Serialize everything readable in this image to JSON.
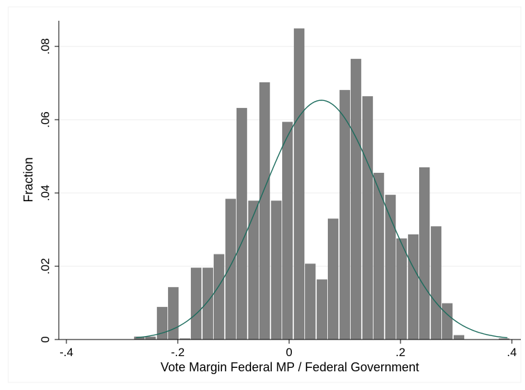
{
  "chart_data": {
    "type": "bar",
    "xlabel": "Vote Margin Federal MP / Federal Government",
    "ylabel": "Fraction",
    "xlim": [
      -0.4,
      0.4
    ],
    "ylim": [
      0,
      0.087
    ],
    "x_ticks": [
      {
        "value": -0.4,
        "label": "-.4"
      },
      {
        "value": -0.2,
        "label": "-.2"
      },
      {
        "value": 0,
        "label": "0"
      },
      {
        "value": 0.2,
        "label": ".2"
      },
      {
        "value": 0.4,
        "label": ".4"
      }
    ],
    "y_ticks": [
      {
        "value": 0,
        "label": "0"
      },
      {
        "value": 0.02,
        "label": ".02"
      },
      {
        "value": 0.04,
        "label": ".04"
      },
      {
        "value": 0.06,
        "label": ".06"
      },
      {
        "value": 0.08,
        "label": ".08"
      }
    ],
    "grid": true,
    "bin_width": 0.0205,
    "bins": [
      {
        "x": -0.269,
        "y": 0.0008
      },
      {
        "x": -0.249,
        "y": 0.0008
      },
      {
        "x": -0.228,
        "y": 0.0089
      },
      {
        "x": -0.208,
        "y": 0.0143
      },
      {
        "x": -0.187,
        "y": 0.0003
      },
      {
        "x": -0.167,
        "y": 0.0196
      },
      {
        "x": -0.146,
        "y": 0.0196
      },
      {
        "x": -0.126,
        "y": 0.0233
      },
      {
        "x": -0.105,
        "y": 0.0384
      },
      {
        "x": -0.085,
        "y": 0.0632
      },
      {
        "x": -0.064,
        "y": 0.0379
      },
      {
        "x": -0.044,
        "y": 0.0702
      },
      {
        "x": -0.023,
        "y": 0.0379
      },
      {
        "x": -0.003,
        "y": 0.0594
      },
      {
        "x": 0.018,
        "y": 0.0849
      },
      {
        "x": 0.038,
        "y": 0.0207
      },
      {
        "x": 0.059,
        "y": 0.0164
      },
      {
        "x": 0.079,
        "y": 0.033
      },
      {
        "x": 0.1,
        "y": 0.0681
      },
      {
        "x": 0.12,
        "y": 0.0766
      },
      {
        "x": 0.141,
        "y": 0.0664
      },
      {
        "x": 0.161,
        "y": 0.0455
      },
      {
        "x": 0.182,
        "y": 0.0395
      },
      {
        "x": 0.202,
        "y": 0.0276
      },
      {
        "x": 0.223,
        "y": 0.0287
      },
      {
        "x": 0.243,
        "y": 0.047
      },
      {
        "x": 0.264,
        "y": 0.0309
      },
      {
        "x": 0.284,
        "y": 0.0099
      },
      {
        "x": 0.305,
        "y": 0.0012
      },
      {
        "x": 0.386,
        "y": 0.0003
      }
    ],
    "normal_curve": {
      "mean": 0.058,
      "sd": 0.1065,
      "x_range": [
        -0.275,
        0.392
      ],
      "peak": 0.0653
    },
    "colors": {
      "bars": "#808080",
      "curve": "#1a6b5c",
      "grid": "#ececec",
      "axis": "#000000"
    }
  }
}
